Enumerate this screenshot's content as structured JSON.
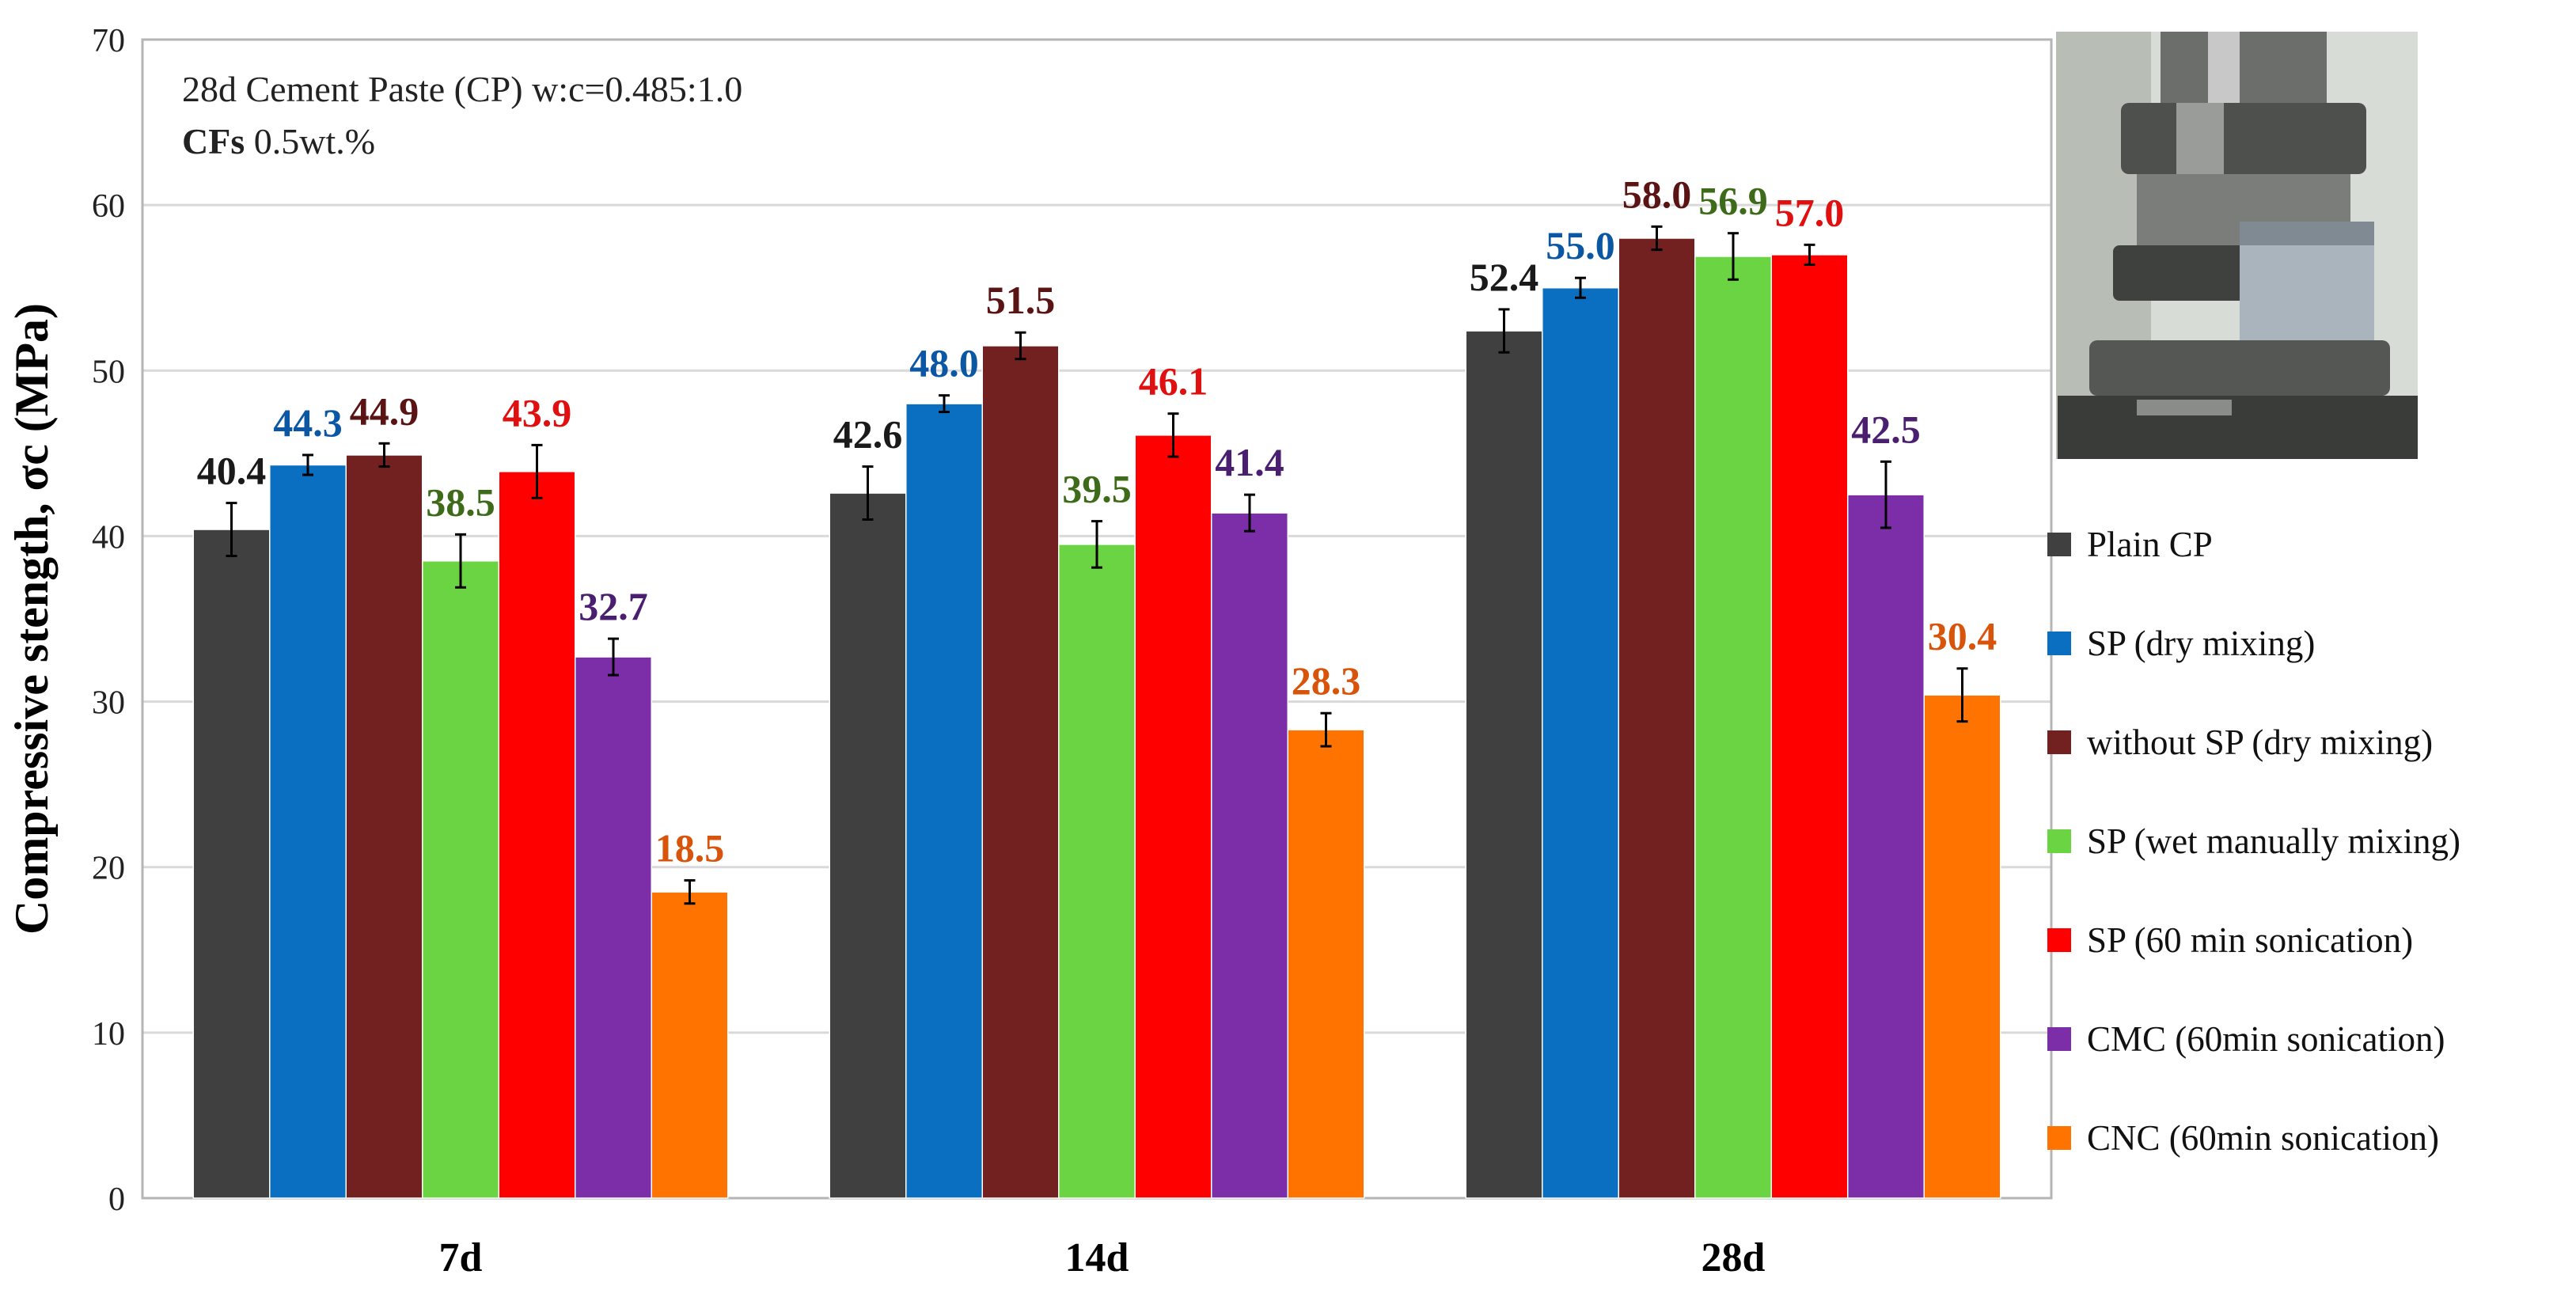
{
  "chart_data": {
    "type": "bar",
    "title": "",
    "annotation": {
      "line1": "28d Cement Paste (CP) w:c=0.485:1.0",
      "line2_bold": "CFs",
      "line2_rest": " 0.5wt.%"
    },
    "xlabel": "",
    "ylabel": "Compressive stength, σc (MPa)",
    "ylim": [
      0,
      70
    ],
    "yticks": [
      0,
      10,
      20,
      30,
      40,
      50,
      60,
      70
    ],
    "ytick_labels": [
      "0",
      "10",
      "20",
      "30",
      "40",
      "50",
      "60",
      "70"
    ],
    "grid": true,
    "legend_position": "right",
    "categories": [
      "7d",
      "14d",
      "28d"
    ],
    "series": [
      {
        "name": "Plain CP",
        "color": "#404040",
        "label_color": "#1a1a1a",
        "values": [
          40.4,
          42.6,
          52.4
        ],
        "labels": [
          "40.4",
          "42.6",
          "52.4"
        ],
        "errors": [
          1.6,
          1.6,
          1.3
        ]
      },
      {
        "name": "SP (dry mixing)",
        "color": "#0b6fc1",
        "label_color": "#0b57a4",
        "values": [
          44.3,
          48.0,
          55.0
        ],
        "labels": [
          "44.3",
          "48.0",
          "55.0"
        ],
        "errors": [
          0.6,
          0.5,
          0.6
        ]
      },
      {
        "name": " without SP (dry mixing)",
        "color": "#722020",
        "label_color": "#5a1414",
        "values": [
          44.9,
          51.5,
          58.0
        ],
        "labels": [
          "44.9",
          "51.5",
          "58.0"
        ],
        "errors": [
          0.7,
          0.8,
          0.7
        ]
      },
      {
        "name": "SP (wet manually mixing)",
        "color": "#6bd443",
        "label_color": "#3d6b1a",
        "values": [
          38.5,
          39.5,
          56.9
        ],
        "labels": [
          "38.5",
          "39.5",
          "56.9"
        ],
        "errors": [
          1.6,
          1.4,
          1.4
        ]
      },
      {
        "name": "SP (60 min sonication)",
        "color": "#ff0000",
        "label_color": "#e01010",
        "values": [
          43.9,
          46.1,
          57.0
        ],
        "labels": [
          "43.9",
          "46.1",
          "57.0"
        ],
        "errors": [
          1.6,
          1.3,
          0.6
        ]
      },
      {
        "name": "CMC (60min sonication)",
        "color": "#7b2ea8",
        "label_color": "#4b1f6f",
        "values": [
          32.7,
          41.4,
          42.5
        ],
        "labels": [
          "32.7",
          "41.4",
          "42.5"
        ],
        "errors": [
          1.1,
          1.1,
          2.0
        ]
      },
      {
        "name": "CNC (60min sonication)",
        "color": "#ff7300",
        "label_color": "#d9540b",
        "values": [
          18.5,
          28.3,
          30.4
        ],
        "labels": [
          "18.5",
          "28.3",
          "30.4"
        ],
        "errors": [
          0.7,
          1.0,
          1.6
        ]
      }
    ]
  }
}
